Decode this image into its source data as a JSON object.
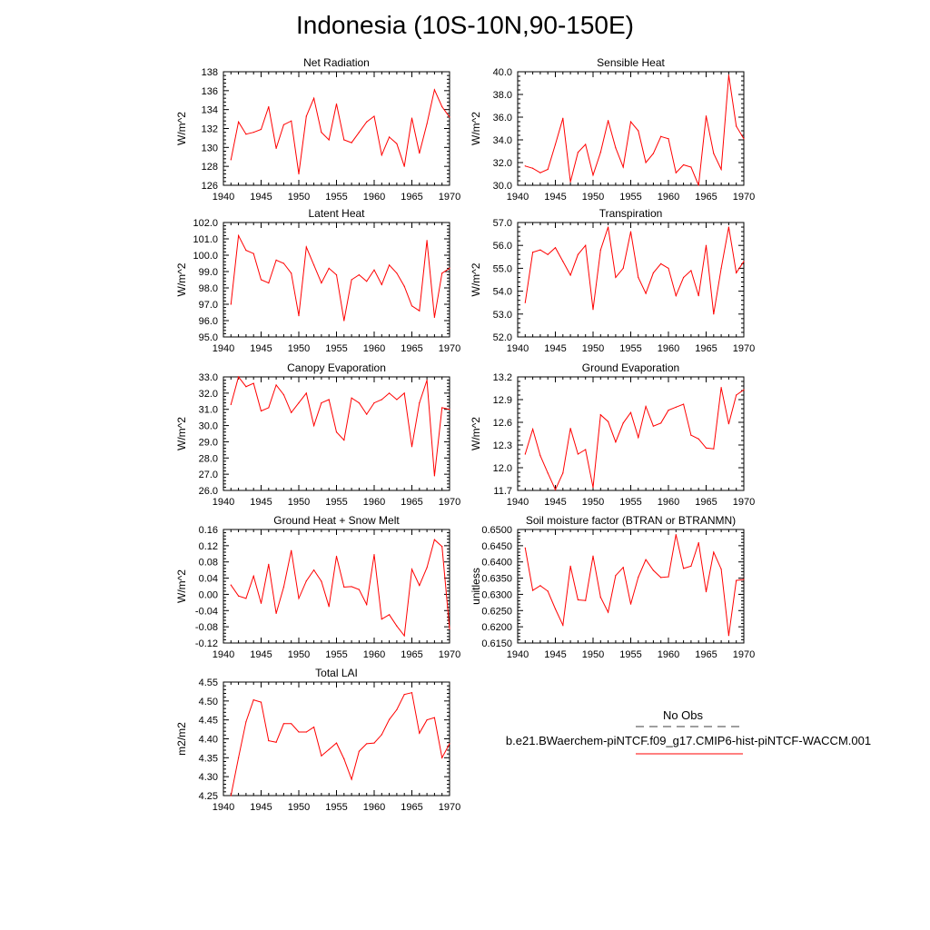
{
  "page": {
    "title": "Indonesia (10S-10N,90-150E)"
  },
  "legend": {
    "obs_label": "No Obs",
    "obs_color": "#666666",
    "model_label": "b.e21.BWaerchem-piNTCF.f09_g17.CMIP6-hist-piNTCF-WACCM.001",
    "model_color": "#ff0000"
  },
  "chart_data": [
    {
      "type": "line",
      "title": "Net Radiation",
      "ylabel": "W/m^2",
      "xlim": [
        1940,
        1970
      ],
      "ylim": [
        126,
        138
      ],
      "xticks": [
        "1940",
        "1945",
        "1950",
        "1955",
        "1960",
        "1965",
        "1970"
      ],
      "yticks": [
        "126",
        "128",
        "130",
        "132",
        "134",
        "136",
        "138"
      ],
      "series": [
        {
          "color": "#ff0000",
          "x": [
            1941,
            1942,
            1943,
            1944,
            1945,
            1946,
            1947,
            1948,
            1949,
            1950,
            1951,
            1952,
            1953,
            1954,
            1955,
            1956,
            1957,
            1958,
            1959,
            1960,
            1961,
            1962,
            1963,
            1964,
            1965,
            1966,
            1967,
            1968,
            1969,
            1970
          ],
          "values": [
            128.7,
            132.7,
            131.4,
            131.6,
            131.9,
            134.3,
            129.9,
            132.4,
            132.8,
            127.2,
            133.3,
            135.2,
            131.6,
            130.8,
            134.6,
            130.8,
            130.5,
            131.6,
            132.7,
            133.3,
            129.2,
            131.1,
            130.4,
            128.0,
            133.1,
            129.4,
            132.5,
            136.1,
            134.3,
            133.2
          ]
        }
      ]
    },
    {
      "type": "line",
      "title": "Sensible Heat",
      "ylabel": "W/m^2",
      "xlim": [
        1940,
        1970
      ],
      "ylim": [
        30.0,
        40.0
      ],
      "xticks": [
        "1940",
        "1945",
        "1950",
        "1955",
        "1960",
        "1965",
        "1970"
      ],
      "yticks": [
        "30.0",
        "32.0",
        "34.0",
        "36.0",
        "38.0",
        "40.0"
      ],
      "series": [
        {
          "color": "#ff0000",
          "x": [
            1941,
            1942,
            1943,
            1944,
            1945,
            1946,
            1947,
            1948,
            1949,
            1950,
            1951,
            1952,
            1953,
            1954,
            1955,
            1956,
            1957,
            1958,
            1959,
            1960,
            1961,
            1962,
            1963,
            1964,
            1965,
            1966,
            1967,
            1968,
            1969,
            1970
          ],
          "values": [
            31.7,
            31.5,
            31.1,
            31.4,
            33.6,
            35.9,
            30.3,
            32.9,
            33.6,
            30.9,
            32.9,
            35.7,
            33.3,
            31.6,
            35.6,
            34.8,
            32.0,
            32.8,
            34.3,
            34.1,
            31.1,
            31.8,
            31.6,
            30.0,
            36.1,
            32.8,
            31.4,
            39.7,
            35.2,
            34.1
          ]
        }
      ]
    },
    {
      "type": "line",
      "title": "Latent Heat",
      "ylabel": "W/m^2",
      "xlim": [
        1940,
        1970
      ],
      "ylim": [
        95.0,
        102.0
      ],
      "xticks": [
        "1940",
        "1945",
        "1950",
        "1955",
        "1960",
        "1965",
        "1970"
      ],
      "yticks": [
        "95.0",
        "96.0",
        "97.0",
        "98.0",
        "99.0",
        "100.0",
        "101.0",
        "102.0"
      ],
      "series": [
        {
          "color": "#ff0000",
          "x": [
            1941,
            1942,
            1943,
            1944,
            1945,
            1946,
            1947,
            1948,
            1949,
            1950,
            1951,
            1952,
            1953,
            1954,
            1955,
            1956,
            1957,
            1958,
            1959,
            1960,
            1961,
            1962,
            1963,
            1964,
            1965,
            1966,
            1967,
            1968,
            1969,
            1970
          ],
          "values": [
            97.0,
            101.2,
            100.3,
            100.1,
            98.5,
            98.3,
            99.7,
            99.5,
            98.9,
            96.3,
            100.5,
            99.4,
            98.3,
            99.2,
            98.8,
            96.0,
            98.5,
            98.8,
            98.4,
            99.1,
            98.2,
            99.4,
            98.9,
            98.1,
            96.9,
            96.6,
            100.9,
            96.2,
            98.9,
            99.2
          ]
        }
      ]
    },
    {
      "type": "line",
      "title": "Transpiration",
      "ylabel": "W/m^2",
      "xlim": [
        1940,
        1970
      ],
      "ylim": [
        52.0,
        57.0
      ],
      "xticks": [
        "1940",
        "1945",
        "1950",
        "1955",
        "1960",
        "1965",
        "1970"
      ],
      "yticks": [
        "52.0",
        "53.0",
        "54.0",
        "55.0",
        "56.0",
        "57.0"
      ],
      "series": [
        {
          "color": "#ff0000",
          "x": [
            1941,
            1942,
            1943,
            1944,
            1945,
            1946,
            1947,
            1948,
            1949,
            1950,
            1951,
            1952,
            1953,
            1954,
            1955,
            1956,
            1957,
            1958,
            1959,
            1960,
            1961,
            1962,
            1963,
            1964,
            1965,
            1966,
            1967,
            1968,
            1969,
            1970
          ],
          "values": [
            53.5,
            55.7,
            55.8,
            55.6,
            55.9,
            55.3,
            54.7,
            55.6,
            56.0,
            53.2,
            55.8,
            56.8,
            54.6,
            55.0,
            56.6,
            54.6,
            53.9,
            54.8,
            55.2,
            55.0,
            53.8,
            54.6,
            54.9,
            53.8,
            56.0,
            53.0,
            55.0,
            56.8,
            54.8,
            55.3
          ]
        }
      ]
    },
    {
      "type": "line",
      "title": "Canopy Evaporation",
      "ylabel": "W/m^2",
      "xlim": [
        1940,
        1970
      ],
      "ylim": [
        26.0,
        33.0
      ],
      "xticks": [
        "1940",
        "1945",
        "1950",
        "1955",
        "1960",
        "1965",
        "1970"
      ],
      "yticks": [
        "26.0",
        "27.0",
        "28.0",
        "29.0",
        "30.0",
        "31.0",
        "32.0",
        "33.0"
      ],
      "series": [
        {
          "color": "#ff0000",
          "x": [
            1941,
            1942,
            1943,
            1944,
            1945,
            1946,
            1947,
            1948,
            1949,
            1950,
            1951,
            1952,
            1953,
            1954,
            1955,
            1956,
            1957,
            1958,
            1959,
            1960,
            1961,
            1962,
            1963,
            1964,
            1965,
            1966,
            1967,
            1968,
            1969,
            1970
          ],
          "values": [
            31.3,
            33.0,
            32.4,
            32.6,
            30.9,
            31.1,
            32.5,
            31.9,
            30.8,
            31.4,
            32.0,
            30.0,
            31.4,
            31.6,
            29.6,
            29.1,
            31.7,
            31.4,
            30.7,
            31.4,
            31.6,
            32.0,
            31.6,
            32.0,
            28.7,
            31.4,
            32.8,
            26.9,
            31.1,
            31.0
          ]
        }
      ]
    },
    {
      "type": "line",
      "title": "Ground Evaporation",
      "ylabel": "W/m^2",
      "xlim": [
        1940,
        1970
      ],
      "ylim": [
        11.7,
        13.2
      ],
      "xticks": [
        "1940",
        "1945",
        "1950",
        "1955",
        "1960",
        "1965",
        "1970"
      ],
      "yticks": [
        "11.7",
        "12.0",
        "12.3",
        "12.6",
        "12.9",
        "13.2"
      ],
      "series": [
        {
          "color": "#ff0000",
          "x": [
            1941,
            1942,
            1943,
            1944,
            1945,
            1946,
            1947,
            1948,
            1949,
            1950,
            1951,
            1952,
            1953,
            1954,
            1955,
            1956,
            1957,
            1958,
            1959,
            1960,
            1961,
            1962,
            1963,
            1964,
            1965,
            1966,
            1967,
            1968,
            1969,
            1970
          ],
          "values": [
            12.18,
            12.51,
            12.16,
            11.93,
            11.71,
            11.93,
            12.52,
            12.18,
            12.24,
            11.74,
            12.7,
            12.61,
            12.34,
            12.59,
            12.73,
            12.4,
            12.81,
            12.55,
            12.59,
            12.76,
            12.8,
            12.84,
            12.43,
            12.38,
            12.26,
            12.25,
            13.06,
            12.58,
            12.96,
            13.03
          ]
        }
      ]
    },
    {
      "type": "line",
      "title": "Ground Heat + Snow Melt",
      "ylabel": "W/m^2",
      "xlim": [
        1940,
        1970
      ],
      "ylim": [
        -0.12,
        0.16
      ],
      "xticks": [
        "1940",
        "1945",
        "1950",
        "1955",
        "1960",
        "1965",
        "1970"
      ],
      "yticks": [
        "-0.12",
        "-0.08",
        "-0.04",
        "0.00",
        "0.04",
        "0.08",
        "0.12",
        "0.16"
      ],
      "series": [
        {
          "color": "#ff0000",
          "x": [
            1941,
            1942,
            1943,
            1944,
            1945,
            1946,
            1947,
            1948,
            1949,
            1950,
            1951,
            1952,
            1953,
            1954,
            1955,
            1956,
            1957,
            1958,
            1959,
            1960,
            1961,
            1962,
            1963,
            1964,
            1965,
            1966,
            1967,
            1968,
            1969,
            1970
          ],
          "values": [
            0.023,
            -0.004,
            -0.01,
            0.045,
            -0.022,
            0.074,
            -0.047,
            0.018,
            0.108,
            -0.01,
            0.033,
            0.06,
            0.032,
            -0.03,
            0.094,
            0.018,
            0.019,
            0.012,
            -0.025,
            0.098,
            -0.061,
            -0.05,
            -0.078,
            -0.102,
            0.062,
            0.022,
            0.066,
            0.135,
            0.118,
            -0.085
          ]
        }
      ]
    },
    {
      "type": "line",
      "title": "Soil moisture factor (BTRAN or BTRANMN)",
      "ylabel": "unitless",
      "xlim": [
        1940,
        1970
      ],
      "ylim": [
        0.615,
        0.65
      ],
      "xticks": [
        "1940",
        "1945",
        "1950",
        "1955",
        "1960",
        "1965",
        "1970"
      ],
      "yticks": [
        "0.6150",
        "0.6200",
        "0.6250",
        "0.6300",
        "0.6350",
        "0.6400",
        "0.6450",
        "0.6500"
      ],
      "series": [
        {
          "color": "#ff0000",
          "x": [
            1941,
            1942,
            1943,
            1944,
            1945,
            1946,
            1947,
            1948,
            1949,
            1950,
            1951,
            1952,
            1953,
            1954,
            1955,
            1956,
            1957,
            1958,
            1959,
            1960,
            1961,
            1962,
            1963,
            1964,
            1965,
            1966,
            1967,
            1968,
            1969,
            1970
          ],
          "values": [
            0.6443,
            0.6312,
            0.6327,
            0.631,
            0.6255,
            0.6205,
            0.6387,
            0.6283,
            0.6281,
            0.6418,
            0.6291,
            0.6245,
            0.6358,
            0.6383,
            0.627,
            0.6353,
            0.6407,
            0.6374,
            0.6352,
            0.6354,
            0.6484,
            0.638,
            0.6387,
            0.6459,
            0.6308,
            0.643,
            0.6378,
            0.6173,
            0.6343,
            0.6346
          ]
        }
      ]
    },
    {
      "type": "line",
      "title": "Total LAI",
      "ylabel": "m2/m2",
      "xlim": [
        1940,
        1970
      ],
      "ylim": [
        4.25,
        4.55
      ],
      "xticks": [
        "1940",
        "1945",
        "1950",
        "1955",
        "1960",
        "1965",
        "1970"
      ],
      "yticks": [
        "4.25",
        "4.30",
        "4.35",
        "4.40",
        "4.45",
        "4.50",
        "4.55"
      ],
      "series": [
        {
          "color": "#ff0000",
          "x": [
            1941,
            1942,
            1943,
            1944,
            1945,
            1946,
            1947,
            1948,
            1949,
            1950,
            1951,
            1952,
            1953,
            1954,
            1955,
            1956,
            1957,
            1958,
            1959,
            1960,
            1961,
            1962,
            1963,
            1964,
            1965,
            1966,
            1967,
            1968,
            1969,
            1970
          ],
          "values": [
            4.25,
            4.35,
            4.445,
            4.503,
            4.497,
            4.395,
            4.391,
            4.44,
            4.44,
            4.418,
            4.418,
            4.431,
            4.355,
            4.372,
            4.389,
            4.347,
            4.293,
            4.367,
            4.387,
            4.389,
            4.411,
            4.451,
            4.477,
            4.517,
            4.522,
            4.415,
            4.45,
            4.456,
            4.35,
            4.387
          ]
        }
      ]
    }
  ]
}
